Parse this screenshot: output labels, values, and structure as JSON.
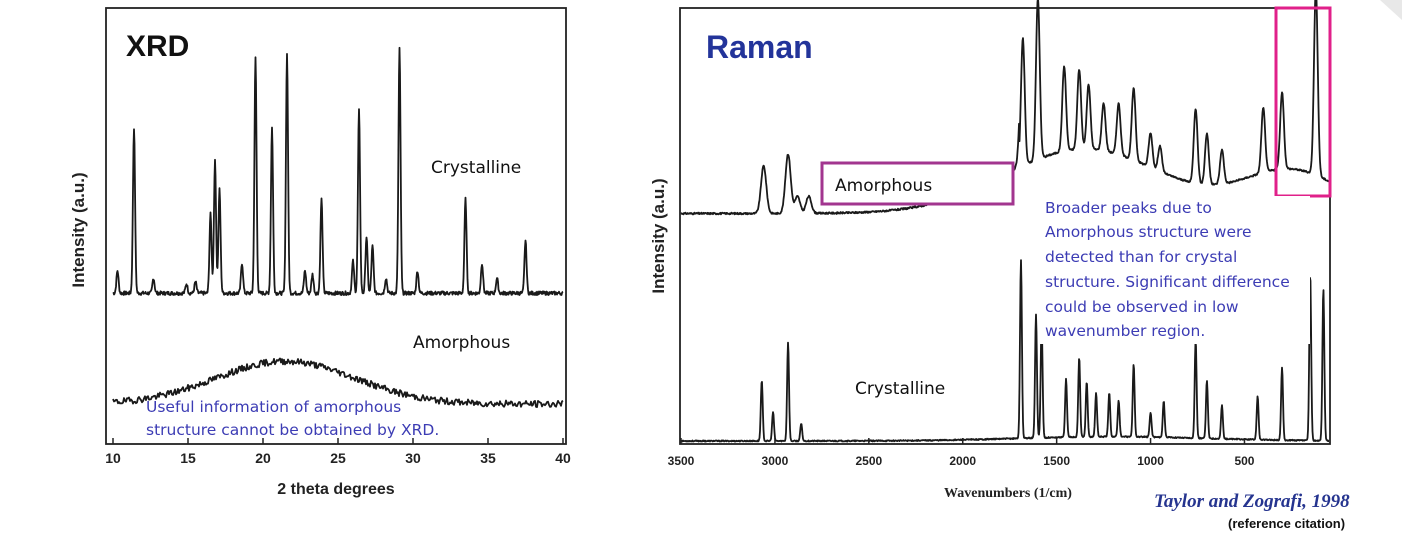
{
  "chart_data": [
    {
      "type": "line",
      "title": "XRD",
      "xlabel": "2 theta degrees",
      "ylabel": "Intensity (a.u.)",
      "xlim": [
        10,
        40
      ],
      "xticks": [
        "10",
        "15",
        "20",
        "25",
        "30",
        "35",
        "40"
      ],
      "series": [
        {
          "name": "Crystalline",
          "baseline": 0.0,
          "peaks": [
            [
              10.3,
              0.12
            ],
            [
              11.4,
              0.88
            ],
            [
              12.7,
              0.08
            ],
            [
              14.9,
              0.05
            ],
            [
              15.5,
              0.06
            ],
            [
              16.5,
              0.42
            ],
            [
              16.8,
              0.7
            ],
            [
              17.1,
              0.55
            ],
            [
              18.6,
              0.16
            ],
            [
              19.5,
              1.25
            ],
            [
              20.6,
              0.88
            ],
            [
              21.6,
              1.27
            ],
            [
              22.8,
              0.12
            ],
            [
              23.3,
              0.1
            ],
            [
              23.9,
              0.5
            ],
            [
              26.0,
              0.17
            ],
            [
              26.4,
              0.97
            ],
            [
              26.9,
              0.3
            ],
            [
              27.3,
              0.25
            ],
            [
              28.2,
              0.08
            ],
            [
              29.1,
              1.3
            ],
            [
              30.3,
              0.12
            ],
            [
              33.5,
              0.5
            ],
            [
              34.6,
              0.16
            ],
            [
              35.6,
              0.08
            ],
            [
              37.5,
              0.28
            ]
          ]
        },
        {
          "name": "Amorphous",
          "halo_center": 21.5,
          "halo_height": 0.26,
          "halo_width": 4.6
        }
      ]
    },
    {
      "type": "line",
      "title": "Raman",
      "xlabel": "Wavenumbers (1/cm)",
      "ylabel": "Intensity (a.u.)",
      "xlim": [
        3500,
        50
      ],
      "xticks": [
        "3500",
        "3000",
        "2500",
        "2000",
        "1500",
        "1000",
        "500"
      ],
      "series": [
        {
          "name": "Amorphous",
          "peaks": [
            [
              3060,
              0.28
            ],
            [
              2930,
              0.35
            ],
            [
              2880,
              0.1
            ],
            [
              2820,
              0.1
            ],
            [
              1680,
              0.75
            ],
            [
              1600,
              0.95
            ],
            [
              1460,
              0.5
            ],
            [
              1380,
              0.47
            ],
            [
              1330,
              0.38
            ],
            [
              1250,
              0.28
            ],
            [
              1170,
              0.3
            ],
            [
              1090,
              0.42
            ],
            [
              1000,
              0.2
            ],
            [
              950,
              0.15
            ],
            [
              760,
              0.44
            ],
            [
              700,
              0.3
            ],
            [
              620,
              0.2
            ],
            [
              400,
              0.38
            ],
            [
              300,
              0.45
            ],
            [
              120,
              1.1
            ]
          ]
        },
        {
          "name": "Crystalline",
          "peaks": [
            [
              3070,
              0.42
            ],
            [
              3010,
              0.2
            ],
            [
              2930,
              0.68
            ],
            [
              2860,
              0.12
            ],
            [
              1690,
              1.23
            ],
            [
              1610,
              0.85
            ],
            [
              1580,
              0.8
            ],
            [
              1450,
              0.4
            ],
            [
              1380,
              0.55
            ],
            [
              1340,
              0.38
            ],
            [
              1290,
              0.3
            ],
            [
              1220,
              0.3
            ],
            [
              1170,
              0.25
            ],
            [
              1090,
              0.5
            ],
            [
              1000,
              0.17
            ],
            [
              930,
              0.25
            ],
            [
              760,
              0.68
            ],
            [
              700,
              0.4
            ],
            [
              620,
              0.23
            ],
            [
              430,
              0.3
            ],
            [
              300,
              0.5
            ],
            [
              150,
              1.15
            ],
            [
              80,
              1.05
            ]
          ]
        }
      ]
    }
  ],
  "labels": {
    "xrd_title": "XRD",
    "xrd_crystalline": "Crystalline",
    "xrd_amorphous": "Amorphous",
    "xrd_ylabel": "Intensity (a.u.)",
    "xrd_xlabel": "2 theta degrees",
    "xrd_note_line1": "Useful information of amorphous",
    "xrd_note_line2": "structure cannot be obtained by XRD.",
    "raman_title": "Raman",
    "raman_amorphous": "Amorphous",
    "raman_crystalline": "Crystalline",
    "raman_ylabel": "Intensity (a.u.)",
    "raman_xlabel": "Wavenumbers (1/cm)",
    "raman_note": [
      "Broader peaks due to",
      "Amorphous structure were",
      "detected than for crystal",
      "structure. Significant difference",
      "could be observed in low",
      "wavenumber region."
    ],
    "citation": "Taylor and Zografi, 1998",
    "citation_sub": "(reference  citation)"
  },
  "colors": {
    "raman_title": "#23349a",
    "highlight_box": "#e0208a",
    "amorphous_box": "#a2358f",
    "note_text": "#3c3cb4"
  }
}
